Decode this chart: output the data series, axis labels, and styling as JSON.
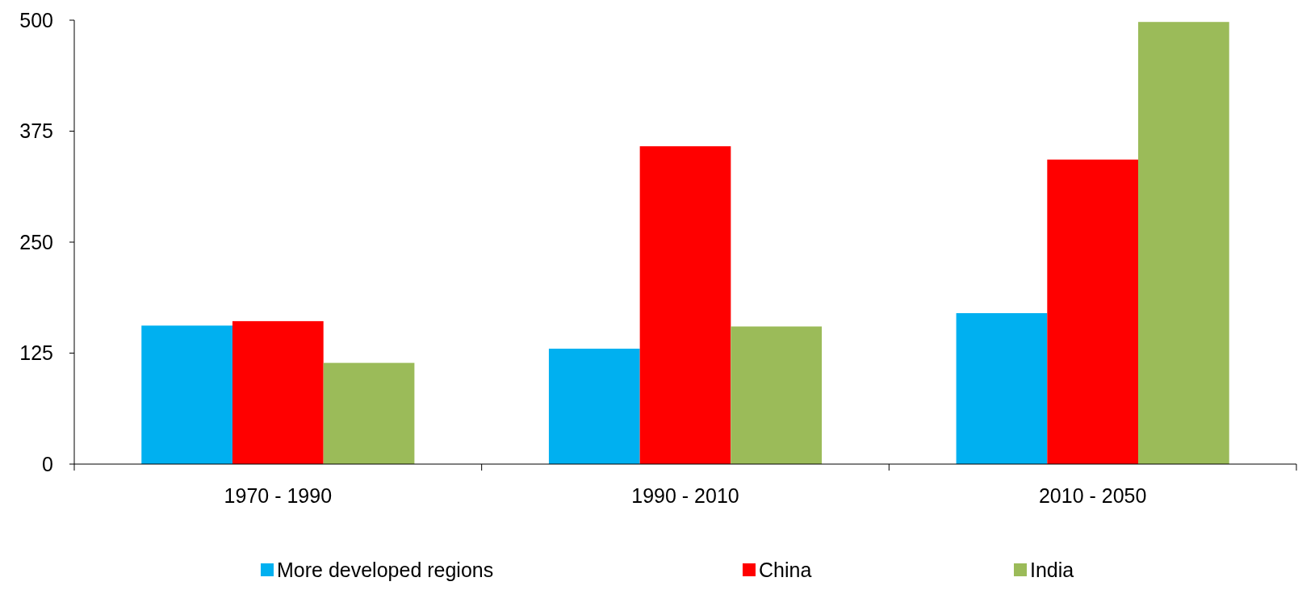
{
  "chart_data": {
    "type": "bar",
    "categories": [
      "1970 - 1990",
      "1990 - 2010",
      "2010 - 2050"
    ],
    "series": [
      {
        "name": "More developed regions",
        "color": "#00b0f0",
        "values": [
          156,
          130,
          170
        ]
      },
      {
        "name": "China",
        "color": "#ff0000",
        "values": [
          161,
          358,
          343
        ]
      },
      {
        "name": "India",
        "color": "#9bbb59",
        "values": [
          114,
          155,
          498
        ]
      }
    ],
    "ylim": [
      0,
      500
    ],
    "yticks": [
      0,
      125,
      250,
      375,
      500
    ],
    "grid": false,
    "legend": "bottom"
  }
}
